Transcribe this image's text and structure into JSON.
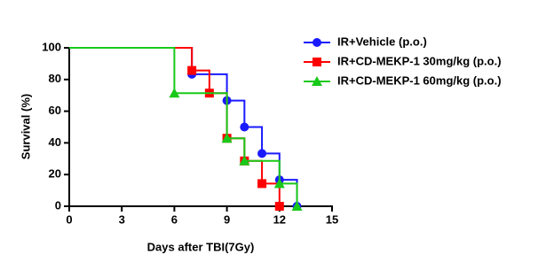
{
  "chart_data": {
    "type": "step",
    "xlabel": "Days after TBI(7Gy)",
    "ylabel": "Survival (%)",
    "xlim": [
      0,
      15
    ],
    "xticks": [
      0,
      3,
      6,
      9,
      12,
      15
    ],
    "ylim": [
      0,
      100
    ],
    "yticks": [
      0,
      20,
      40,
      60,
      80,
      100
    ],
    "legend": "upper right",
    "series": [
      {
        "name": "IR+Vehicle (p.o.)",
        "color": "#1a1aff",
        "marker": "circle",
        "x": [
          0,
          7,
          9,
          10,
          11,
          12,
          13
        ],
        "values": [
          100,
          83.3,
          66.7,
          50,
          33.3,
          16.7,
          0
        ]
      },
      {
        "name": "IR+CD-MEKP-1 30mg/kg (p.o.)",
        "color": "#ff0000",
        "marker": "square",
        "x": [
          0,
          7,
          8,
          9,
          10,
          11,
          12
        ],
        "values": [
          100,
          85.7,
          71.4,
          42.9,
          28.6,
          14.3,
          0
        ]
      },
      {
        "name": "IR+CD-MEKP-1 60mg/kg (p.o.)",
        "color": "#19c919",
        "marker": "triangle",
        "x": [
          0,
          6,
          9,
          10,
          12,
          13
        ],
        "values": [
          100,
          71.4,
          42.9,
          28.6,
          14.3,
          0
        ]
      }
    ]
  }
}
